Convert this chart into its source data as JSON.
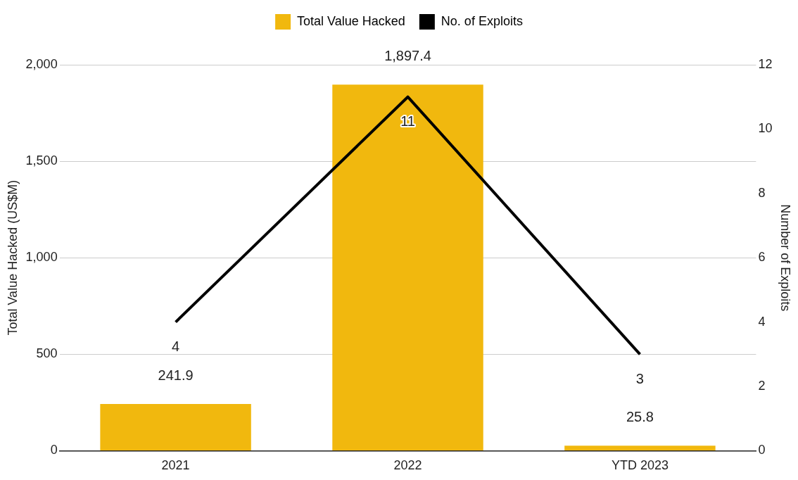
{
  "chart_data": {
    "type": "bar",
    "categories": [
      "2021",
      "2022",
      "YTD 2023"
    ],
    "ylabel": "Total Value Hacked (US$M)",
    "y2label": "Number of Exploits",
    "series": [
      {
        "name": "Total Value Hacked",
        "color": "#f1b80e",
        "values": [
          241.9,
          1897.4,
          25.8
        ],
        "value_labels": [
          "241.9",
          "1,897.4",
          "25.8"
        ]
      },
      {
        "name": "No. of Exploits",
        "type": "line",
        "axis": "y2",
        "color": "#000000",
        "values": [
          4,
          11,
          3
        ],
        "value_labels": [
          "4",
          "11",
          "3"
        ]
      }
    ],
    "ylim": [
      0,
      2000
    ],
    "yticks": [
      0,
      {
        "value": 500,
        "label": "500"
      },
      {
        "value": 1000,
        "label": "1,000"
      },
      {
        "value": 1500,
        "label": "1,500"
      },
      {
        "value": 2000,
        "label": "2,000"
      }
    ],
    "y2lim": [
      0,
      12
    ],
    "y2ticks": [
      0,
      2,
      4,
      6,
      8,
      10,
      12
    ],
    "grid": "y",
    "legend": "top",
    "marker": "none"
  }
}
